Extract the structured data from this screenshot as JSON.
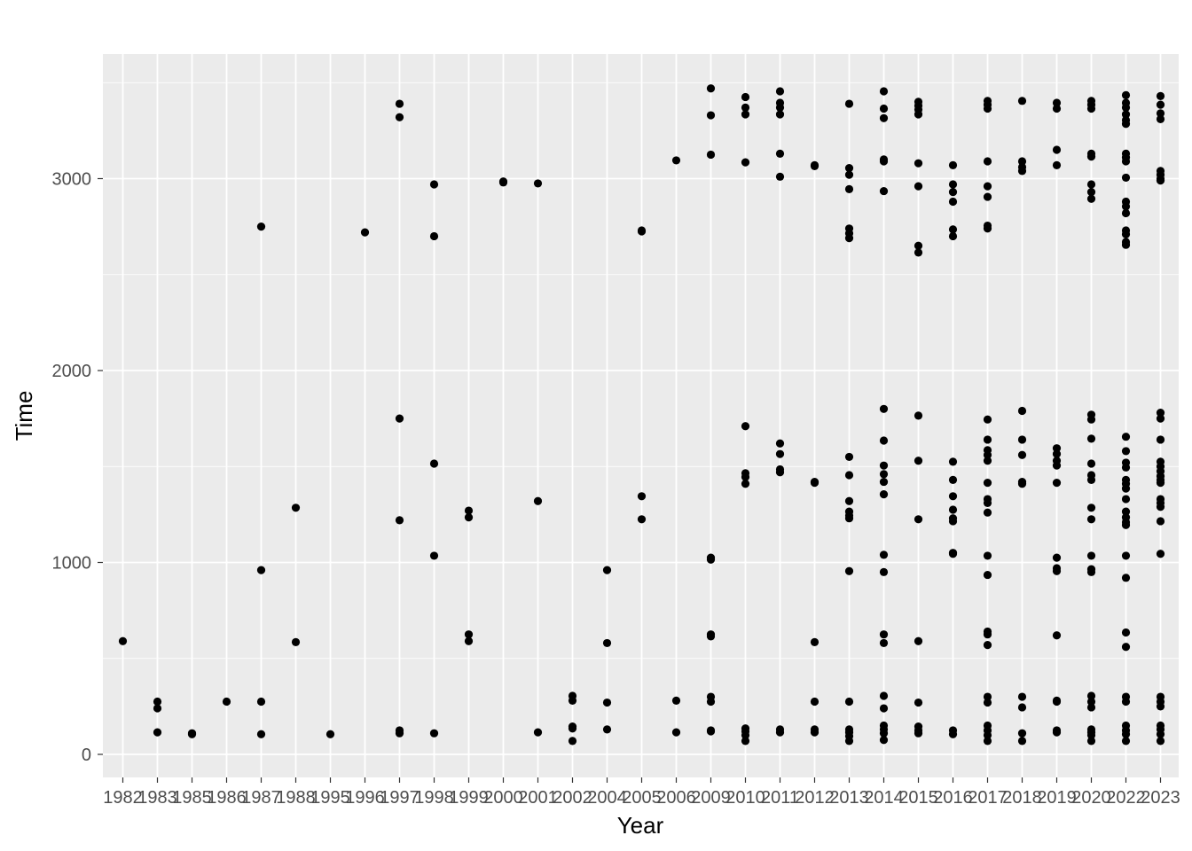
{
  "chart_data": {
    "type": "scatter",
    "title": "",
    "xlabel": "Year",
    "ylabel": "Time",
    "x_axis_type": "categorical",
    "categories": [
      "1982",
      "1983",
      "1985",
      "1986",
      "1987",
      "1988",
      "1995",
      "1996",
      "1997",
      "1998",
      "1999",
      "2000",
      "2001",
      "2002",
      "2004",
      "2005",
      "2006",
      "2009",
      "2010",
      "2011",
      "2012",
      "2013",
      "2014",
      "2015",
      "2016",
      "2017",
      "2018",
      "2019",
      "2020",
      "2022",
      "2023"
    ],
    "ylim": [
      -100,
      3620
    ],
    "y_ticks": [
      0,
      1000,
      2000,
      3000
    ],
    "grid": true,
    "legend": "none",
    "colors": {
      "panel_background": "#ebebeb",
      "grid_major": "#ffffff",
      "point": "#000000",
      "tick_text": "#4d4d4d"
    },
    "points": [
      [
        "1982",
        590
      ],
      [
        "1983",
        275
      ],
      [
        "1983",
        240
      ],
      [
        "1983",
        115
      ],
      [
        "1985",
        110
      ],
      [
        "1985",
        105
      ],
      [
        "1986",
        275
      ],
      [
        "1987",
        2750
      ],
      [
        "1987",
        960
      ],
      [
        "1987",
        275
      ],
      [
        "1987",
        105
      ],
      [
        "1988",
        1285
      ],
      [
        "1988",
        585
      ],
      [
        "1995",
        105
      ],
      [
        "1996",
        2720
      ],
      [
        "1997",
        3390
      ],
      [
        "1997",
        3320
      ],
      [
        "1997",
        1750
      ],
      [
        "1997",
        1220
      ],
      [
        "1997",
        125
      ],
      [
        "1997",
        110
      ],
      [
        "1998",
        2970
      ],
      [
        "1998",
        2700
      ],
      [
        "1998",
        1515
      ],
      [
        "1998",
        1035
      ],
      [
        "1998",
        110
      ],
      [
        "1999",
        1270
      ],
      [
        "1999",
        1235
      ],
      [
        "1999",
        625
      ],
      [
        "1999",
        590
      ],
      [
        "2000",
        2985
      ],
      [
        "2000",
        2980
      ],
      [
        "2001",
        2975
      ],
      [
        "2001",
        1320
      ],
      [
        "2001",
        115
      ],
      [
        "2002",
        305
      ],
      [
        "2002",
        280
      ],
      [
        "2002",
        145
      ],
      [
        "2002",
        135
      ],
      [
        "2002",
        70
      ],
      [
        "2004",
        960
      ],
      [
        "2004",
        580
      ],
      [
        "2004",
        270
      ],
      [
        "2004",
        130
      ],
      [
        "2005",
        2730
      ],
      [
        "2005",
        2725
      ],
      [
        "2005",
        1345
      ],
      [
        "2005",
        1225
      ],
      [
        "2006",
        3095
      ],
      [
        "2006",
        280
      ],
      [
        "2006",
        115
      ],
      [
        "2009",
        3470
      ],
      [
        "2009",
        3330
      ],
      [
        "2009",
        3125
      ],
      [
        "2009",
        1025
      ],
      [
        "2009",
        1015
      ],
      [
        "2009",
        625
      ],
      [
        "2009",
        615
      ],
      [
        "2009",
        300
      ],
      [
        "2009",
        275
      ],
      [
        "2009",
        125
      ],
      [
        "2009",
        120
      ],
      [
        "2010",
        3425
      ],
      [
        "2010",
        3370
      ],
      [
        "2010",
        3335
      ],
      [
        "2010",
        3085
      ],
      [
        "2010",
        1710
      ],
      [
        "2010",
        1465
      ],
      [
        "2010",
        1445
      ],
      [
        "2010",
        1410
      ],
      [
        "2010",
        135
      ],
      [
        "2010",
        120
      ],
      [
        "2010",
        100
      ],
      [
        "2010",
        70
      ],
      [
        "2011",
        3455
      ],
      [
        "2011",
        3395
      ],
      [
        "2011",
        3370
      ],
      [
        "2011",
        3335
      ],
      [
        "2011",
        3130
      ],
      [
        "2011",
        3010
      ],
      [
        "2011",
        1620
      ],
      [
        "2011",
        1565
      ],
      [
        "2011",
        1485
      ],
      [
        "2011",
        1470
      ],
      [
        "2011",
        130
      ],
      [
        "2011",
        115
      ],
      [
        "2012",
        3070
      ],
      [
        "2012",
        3065
      ],
      [
        "2012",
        1420
      ],
      [
        "2012",
        1415
      ],
      [
        "2012",
        585
      ],
      [
        "2012",
        275
      ],
      [
        "2012",
        130
      ],
      [
        "2012",
        115
      ],
      [
        "2013",
        3390
      ],
      [
        "2013",
        3055
      ],
      [
        "2013",
        3020
      ],
      [
        "2013",
        2945
      ],
      [
        "2013",
        2740
      ],
      [
        "2013",
        2715
      ],
      [
        "2013",
        2690
      ],
      [
        "2013",
        1550
      ],
      [
        "2013",
        1455
      ],
      [
        "2013",
        1320
      ],
      [
        "2013",
        1265
      ],
      [
        "2013",
        1245
      ],
      [
        "2013",
        1230
      ],
      [
        "2013",
        955
      ],
      [
        "2013",
        275
      ],
      [
        "2013",
        130
      ],
      [
        "2013",
        115
      ],
      [
        "2013",
        95
      ],
      [
        "2013",
        70
      ],
      [
        "2014",
        3455
      ],
      [
        "2014",
        3365
      ],
      [
        "2014",
        3315
      ],
      [
        "2014",
        3100
      ],
      [
        "2014",
        3090
      ],
      [
        "2014",
        2935
      ],
      [
        "2014",
        1800
      ],
      [
        "2014",
        1635
      ],
      [
        "2014",
        1505
      ],
      [
        "2014",
        1460
      ],
      [
        "2014",
        1420
      ],
      [
        "2014",
        1355
      ],
      [
        "2014",
        1040
      ],
      [
        "2014",
        950
      ],
      [
        "2014",
        625
      ],
      [
        "2014",
        580
      ],
      [
        "2014",
        305
      ],
      [
        "2014",
        240
      ],
      [
        "2014",
        150
      ],
      [
        "2014",
        130
      ],
      [
        "2014",
        110
      ],
      [
        "2014",
        75
      ],
      [
        "2015",
        3400
      ],
      [
        "2015",
        3380
      ],
      [
        "2015",
        3360
      ],
      [
        "2015",
        3335
      ],
      [
        "2015",
        3080
      ],
      [
        "2015",
        2960
      ],
      [
        "2015",
        2650
      ],
      [
        "2015",
        2615
      ],
      [
        "2015",
        1765
      ],
      [
        "2015",
        1530
      ],
      [
        "2015",
        1225
      ],
      [
        "2015",
        590
      ],
      [
        "2015",
        270
      ],
      [
        "2015",
        145
      ],
      [
        "2015",
        125
      ],
      [
        "2015",
        110
      ],
      [
        "2016",
        3070
      ],
      [
        "2016",
        2970
      ],
      [
        "2016",
        2930
      ],
      [
        "2016",
        2880
      ],
      [
        "2016",
        2735
      ],
      [
        "2016",
        2700
      ],
      [
        "2016",
        1525
      ],
      [
        "2016",
        1430
      ],
      [
        "2016",
        1345
      ],
      [
        "2016",
        1275
      ],
      [
        "2016",
        1230
      ],
      [
        "2016",
        1215
      ],
      [
        "2016",
        1050
      ],
      [
        "2016",
        1045
      ],
      [
        "2016",
        125
      ],
      [
        "2016",
        105
      ],
      [
        "2017",
        3405
      ],
      [
        "2017",
        3385
      ],
      [
        "2017",
        3365
      ],
      [
        "2017",
        3090
      ],
      [
        "2017",
        2960
      ],
      [
        "2017",
        2905
      ],
      [
        "2017",
        2755
      ],
      [
        "2017",
        2740
      ],
      [
        "2017",
        1745
      ],
      [
        "2017",
        1640
      ],
      [
        "2017",
        1585
      ],
      [
        "2017",
        1560
      ],
      [
        "2017",
        1530
      ],
      [
        "2017",
        1415
      ],
      [
        "2017",
        1330
      ],
      [
        "2017",
        1310
      ],
      [
        "2017",
        1260
      ],
      [
        "2017",
        1035
      ],
      [
        "2017",
        935
      ],
      [
        "2017",
        640
      ],
      [
        "2017",
        625
      ],
      [
        "2017",
        570
      ],
      [
        "2017",
        300
      ],
      [
        "2017",
        270
      ],
      [
        "2017",
        150
      ],
      [
        "2017",
        125
      ],
      [
        "2017",
        100
      ],
      [
        "2017",
        70
      ],
      [
        "2018",
        3405
      ],
      [
        "2018",
        3090
      ],
      [
        "2018",
        3060
      ],
      [
        "2018",
        3040
      ],
      [
        "2018",
        1790
      ],
      [
        "2018",
        1640
      ],
      [
        "2018",
        1560
      ],
      [
        "2018",
        1420
      ],
      [
        "2018",
        1410
      ],
      [
        "2018",
        300
      ],
      [
        "2018",
        245
      ],
      [
        "2018",
        110
      ],
      [
        "2018",
        70
      ],
      [
        "2019",
        3395
      ],
      [
        "2019",
        3365
      ],
      [
        "2019",
        3150
      ],
      [
        "2019",
        3070
      ],
      [
        "2019",
        1595
      ],
      [
        "2019",
        1565
      ],
      [
        "2019",
        1530
      ],
      [
        "2019",
        1505
      ],
      [
        "2019",
        1415
      ],
      [
        "2019",
        1025
      ],
      [
        "2019",
        970
      ],
      [
        "2019",
        955
      ],
      [
        "2019",
        620
      ],
      [
        "2019",
        280
      ],
      [
        "2019",
        275
      ],
      [
        "2019",
        125
      ],
      [
        "2019",
        115
      ],
      [
        "2020",
        3405
      ],
      [
        "2020",
        3385
      ],
      [
        "2020",
        3365
      ],
      [
        "2020",
        3130
      ],
      [
        "2020",
        3115
      ],
      [
        "2020",
        2970
      ],
      [
        "2020",
        2930
      ],
      [
        "2020",
        2895
      ],
      [
        "2020",
        1770
      ],
      [
        "2020",
        1745
      ],
      [
        "2020",
        1645
      ],
      [
        "2020",
        1515
      ],
      [
        "2020",
        1455
      ],
      [
        "2020",
        1430
      ],
      [
        "2020",
        1285
      ],
      [
        "2020",
        1225
      ],
      [
        "2020",
        1035
      ],
      [
        "2020",
        965
      ],
      [
        "2020",
        950
      ],
      [
        "2020",
        305
      ],
      [
        "2020",
        275
      ],
      [
        "2020",
        245
      ],
      [
        "2020",
        130
      ],
      [
        "2020",
        115
      ],
      [
        "2020",
        100
      ],
      [
        "2020",
        70
      ],
      [
        "2022",
        3435
      ],
      [
        "2022",
        3395
      ],
      [
        "2022",
        3370
      ],
      [
        "2022",
        3335
      ],
      [
        "2022",
        3305
      ],
      [
        "2022",
        3285
      ],
      [
        "2022",
        3130
      ],
      [
        "2022",
        3110
      ],
      [
        "2022",
        3090
      ],
      [
        "2022",
        3005
      ],
      [
        "2022",
        2880
      ],
      [
        "2022",
        2855
      ],
      [
        "2022",
        2820
      ],
      [
        "2022",
        2730
      ],
      [
        "2022",
        2710
      ],
      [
        "2022",
        2670
      ],
      [
        "2022",
        2655
      ],
      [
        "2022",
        1655
      ],
      [
        "2022",
        1580
      ],
      [
        "2022",
        1520
      ],
      [
        "2022",
        1495
      ],
      [
        "2022",
        1430
      ],
      [
        "2022",
        1410
      ],
      [
        "2022",
        1385
      ],
      [
        "2022",
        1330
      ],
      [
        "2022",
        1265
      ],
      [
        "2022",
        1235
      ],
      [
        "2022",
        1210
      ],
      [
        "2022",
        1195
      ],
      [
        "2022",
        1035
      ],
      [
        "2022",
        920
      ],
      [
        "2022",
        635
      ],
      [
        "2022",
        560
      ],
      [
        "2022",
        300
      ],
      [
        "2022",
        275
      ],
      [
        "2022",
        150
      ],
      [
        "2022",
        125
      ],
      [
        "2022",
        105
      ],
      [
        "2022",
        70
      ],
      [
        "2023",
        3430
      ],
      [
        "2023",
        3385
      ],
      [
        "2023",
        3340
      ],
      [
        "2023",
        3310
      ],
      [
        "2023",
        3040
      ],
      [
        "2023",
        3020
      ],
      [
        "2023",
        3000
      ],
      [
        "2023",
        2990
      ],
      [
        "2023",
        1780
      ],
      [
        "2023",
        1750
      ],
      [
        "2023",
        1640
      ],
      [
        "2023",
        1525
      ],
      [
        "2023",
        1500
      ],
      [
        "2023",
        1475
      ],
      [
        "2023",
        1450
      ],
      [
        "2023",
        1430
      ],
      [
        "2023",
        1415
      ],
      [
        "2023",
        1330
      ],
      [
        "2023",
        1310
      ],
      [
        "2023",
        1290
      ],
      [
        "2023",
        1215
      ],
      [
        "2023",
        1045
      ],
      [
        "2023",
        300
      ],
      [
        "2023",
        275
      ],
      [
        "2023",
        250
      ],
      [
        "2023",
        150
      ],
      [
        "2023",
        130
      ],
      [
        "2023",
        105
      ],
      [
        "2023",
        70
      ]
    ]
  }
}
